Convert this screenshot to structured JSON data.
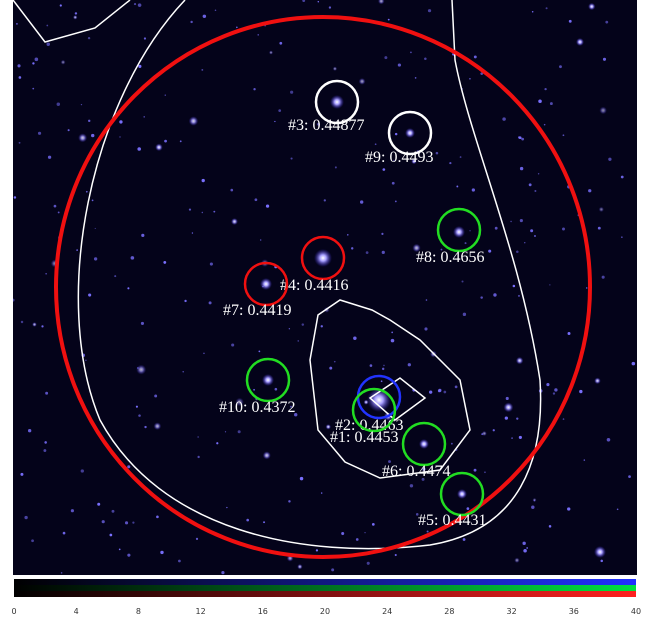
{
  "labels": [
    "#3: 0.44877",
    "#9: 0.4493",
    "#8: 0.4656",
    "#4: 0.4416",
    "#7: 0.4419",
    "#10: 0.4372",
    "#2: 0.4463",
    "#1: 0.4453",
    "#6: 0.4474",
    "#5: 0.4431"
  ],
  "colorbar": {
    "ticks": [
      "0",
      "4",
      "8",
      "12",
      "16",
      "20",
      "24",
      "28",
      "32",
      "36",
      "40"
    ]
  }
}
